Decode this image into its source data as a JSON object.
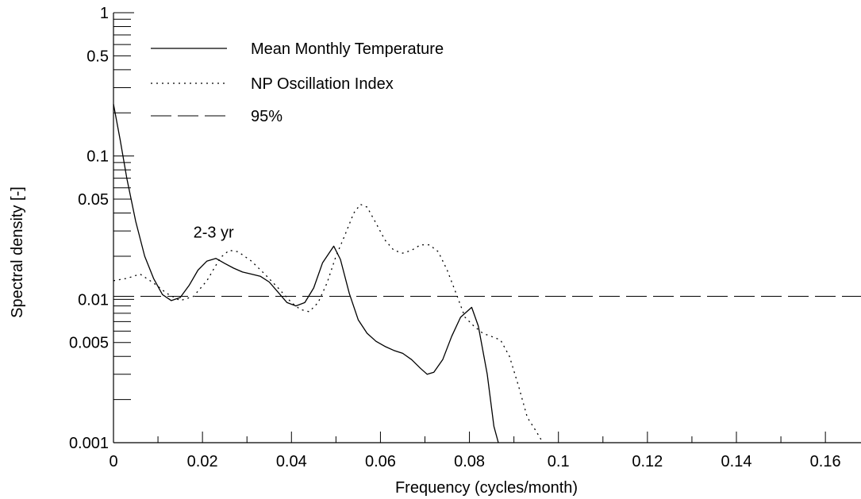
{
  "chart_data": {
    "type": "line",
    "xlabel": "Frequency (cycles/month)",
    "ylabel": "Spectral density [-]",
    "xlim": [
      0,
      0.168
    ],
    "ylim": [
      0.001,
      1
    ],
    "yscale": "log",
    "x_ticks": [
      0,
      0.02,
      0.04,
      0.06,
      0.08,
      0.1,
      0.12,
      0.14,
      0.16
    ],
    "x_tick_labels": [
      "0",
      "0.02",
      "0.04",
      "0.06",
      "0.08",
      "0.1",
      "0.12",
      "0.14",
      "0.16"
    ],
    "y_ticks": [
      0.001,
      0.005,
      0.01,
      0.05,
      0.1,
      0.5,
      1
    ],
    "y_tick_labels": [
      "0.001",
      "0.005",
      "0.01",
      "0.05",
      "0.1",
      "0.5",
      "1"
    ],
    "grid": false,
    "legend_position": "top-left",
    "annotations": [
      {
        "text": "2-3 yr",
        "x": 0.0225,
        "y": 0.027
      }
    ],
    "series": [
      {
        "name": "Mean Monthly Temperature",
        "style": "solid",
        "x": [
          0,
          0.0015,
          0.003,
          0.005,
          0.007,
          0.009,
          0.011,
          0.013,
          0.015,
          0.017,
          0.019,
          0.021,
          0.023,
          0.025,
          0.027,
          0.029,
          0.031,
          0.033,
          0.035,
          0.037,
          0.039,
          0.041,
          0.043,
          0.045,
          0.047,
          0.0495,
          0.051,
          0.053,
          0.055,
          0.057,
          0.059,
          0.061,
          0.063,
          0.065,
          0.067,
          0.069,
          0.0705,
          0.072,
          0.074,
          0.076,
          0.078,
          0.0805,
          0.082,
          0.084,
          0.0855,
          0.0865
        ],
        "y": [
          0.23,
          0.13,
          0.07,
          0.035,
          0.02,
          0.014,
          0.0108,
          0.0098,
          0.0103,
          0.0125,
          0.016,
          0.0185,
          0.0193,
          0.0178,
          0.0165,
          0.0155,
          0.015,
          0.0145,
          0.0132,
          0.0112,
          0.0095,
          0.009,
          0.0095,
          0.012,
          0.018,
          0.0235,
          0.019,
          0.011,
          0.0072,
          0.0058,
          0.0051,
          0.0047,
          0.0044,
          0.0042,
          0.0038,
          0.0033,
          0.003,
          0.0031,
          0.0038,
          0.0055,
          0.0075,
          0.0088,
          0.0065,
          0.003,
          0.0013,
          0.001
        ]
      },
      {
        "name": "NP  Oscillation Index",
        "style": "dotted",
        "x": [
          0,
          0.003,
          0.006,
          0.009,
          0.012,
          0.015,
          0.018,
          0.021,
          0.024,
          0.026,
          0.028,
          0.031,
          0.034,
          0.037,
          0.04,
          0.042,
          0.044,
          0.046,
          0.048,
          0.05,
          0.052,
          0.054,
          0.0555,
          0.057,
          0.059,
          0.061,
          0.063,
          0.065,
          0.067,
          0.069,
          0.071,
          0.073,
          0.075,
          0.077,
          0.079,
          0.081,
          0.083,
          0.085,
          0.087,
          0.089,
          0.091,
          0.093,
          0.095,
          0.0965
        ],
        "y": [
          0.0135,
          0.014,
          0.015,
          0.013,
          0.011,
          0.0098,
          0.0105,
          0.0135,
          0.0195,
          0.022,
          0.0215,
          0.0185,
          0.015,
          0.012,
          0.0095,
          0.0085,
          0.0082,
          0.0095,
          0.013,
          0.02,
          0.028,
          0.04,
          0.046,
          0.044,
          0.034,
          0.026,
          0.022,
          0.021,
          0.022,
          0.024,
          0.024,
          0.0215,
          0.016,
          0.011,
          0.0075,
          0.0065,
          0.0058,
          0.0055,
          0.0052,
          0.004,
          0.0025,
          0.0015,
          0.0012,
          0.001
        ]
      },
      {
        "name": "95%",
        "style": "dashed",
        "x": [
          0,
          0.168
        ],
        "y": [
          0.0105,
          0.0105
        ]
      }
    ]
  }
}
